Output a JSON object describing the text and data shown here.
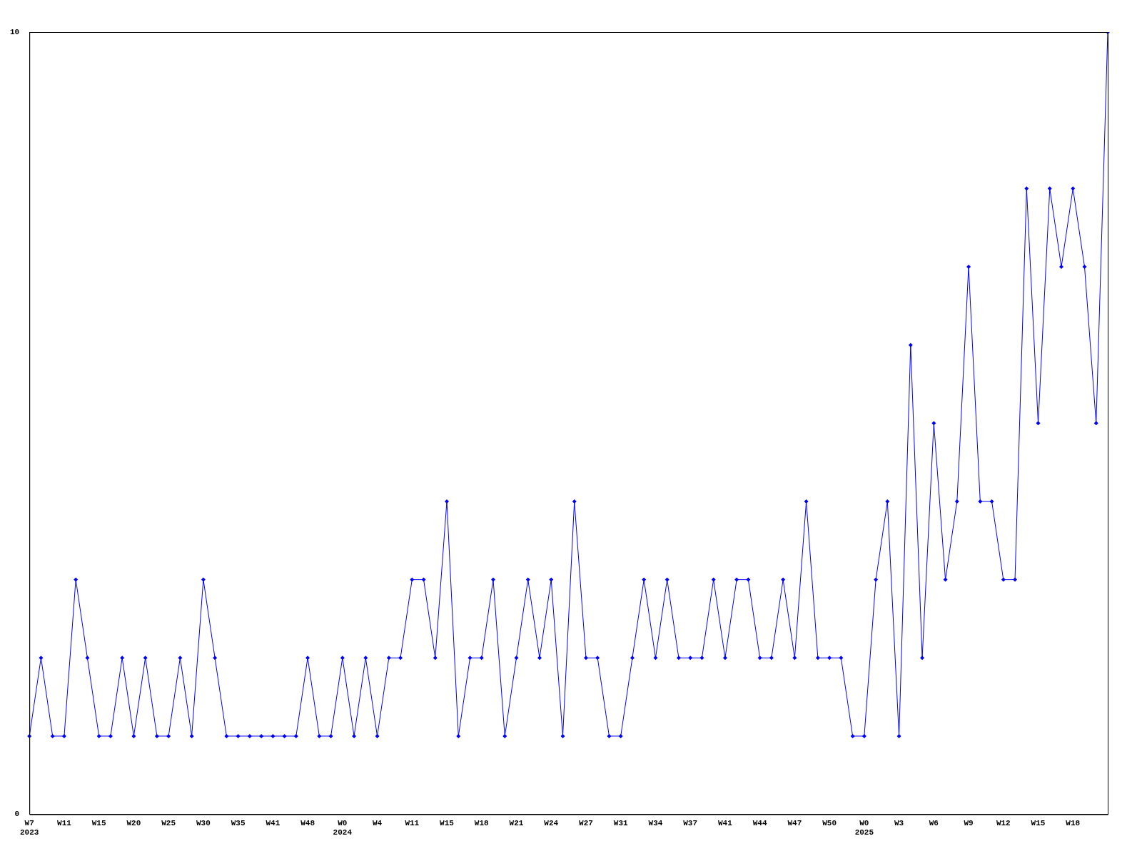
{
  "chart_data": {
    "type": "line",
    "categories": [
      "W7\n2023",
      null,
      null,
      "W11",
      null,
      null,
      "W15",
      null,
      null,
      "W20",
      null,
      null,
      "W25",
      null,
      null,
      "W30",
      null,
      null,
      "W35",
      null,
      null,
      "W41",
      null,
      null,
      "W48",
      null,
      null,
      "W0\n2024",
      null,
      null,
      "W4",
      null,
      null,
      "W11",
      null,
      null,
      "W15",
      null,
      null,
      "W18",
      null,
      null,
      "W21",
      null,
      null,
      "W24",
      null,
      null,
      "W27",
      null,
      null,
      "W31",
      null,
      null,
      "W34",
      null,
      null,
      "W37",
      null,
      null,
      "W41",
      null,
      null,
      "W44",
      null,
      null,
      "W47",
      null,
      null,
      "W50",
      null,
      null,
      "W0\n2025",
      null,
      null,
      "W3",
      null,
      null,
      "W6",
      null,
      null,
      "W9",
      null,
      null,
      "W12",
      null,
      null,
      "W15",
      null,
      null,
      "W18",
      null,
      null,
      null
    ],
    "series": [
      {
        "color": "#0000ff",
        "values": [
          1,
          2,
          1,
          1,
          3,
          2,
          1,
          1,
          2,
          1,
          2,
          1,
          1,
          2,
          1,
          3,
          2,
          1,
          1,
          1,
          1,
          1,
          1,
          1,
          2,
          1,
          1,
          2,
          1,
          2,
          1,
          2,
          2,
          3,
          3,
          2,
          4,
          1,
          2,
          2,
          3,
          1,
          2,
          3,
          2,
          3,
          1,
          4,
          2,
          2,
          1,
          1,
          2,
          3,
          2,
          3,
          2,
          2,
          2,
          3,
          2,
          3,
          3,
          2,
          2,
          3,
          2,
          4,
          2,
          2,
          2,
          1,
          1,
          3,
          4,
          1,
          6,
          2,
          5,
          3,
          4,
          7,
          4,
          4,
          3,
          3,
          8,
          5,
          8,
          7,
          8,
          7,
          5,
          10
        ]
      }
    ],
    "ylim": [
      0,
      10
    ],
    "yticks": [
      0,
      10
    ],
    "grid": false,
    "legend": false,
    "marker": "diamond",
    "line_style": "solid"
  }
}
